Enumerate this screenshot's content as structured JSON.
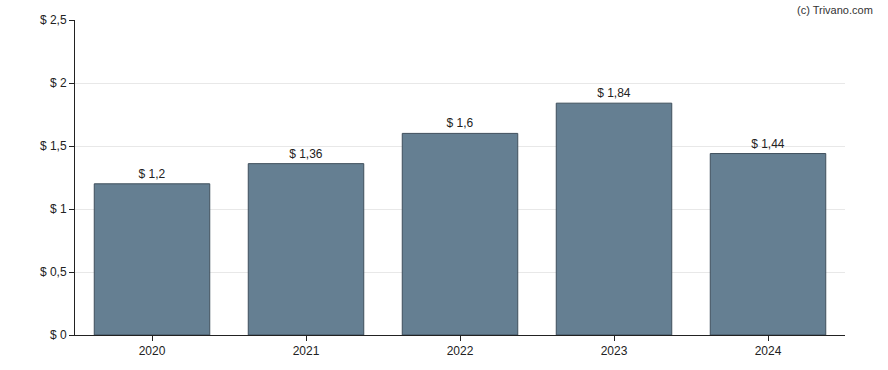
{
  "chart_data": {
    "type": "bar",
    "categories": [
      "2020",
      "2021",
      "2022",
      "2023",
      "2024"
    ],
    "values": [
      1.2,
      1.36,
      1.6,
      1.84,
      1.44
    ],
    "value_labels": [
      "$ 1,2",
      "$ 1,36",
      "$ 1,6",
      "$ 1,84",
      "$ 1,44"
    ],
    "data_labels": true,
    "color": "#657f92",
    "ylim": [
      0,
      2.5
    ],
    "yticks": [
      {
        "value": 0,
        "label": "$ 0"
      },
      {
        "value": 0.5,
        "label": "$ 0,5"
      },
      {
        "value": 1,
        "label": "$ 1"
      },
      {
        "value": 1.5,
        "label": "$ 1,5"
      },
      {
        "value": 2,
        "label": "$ 2"
      },
      {
        "value": 2.5,
        "label": "$ 2,5"
      }
    ],
    "grid": true,
    "annotations": [
      "(c) Trivano.com"
    ]
  }
}
